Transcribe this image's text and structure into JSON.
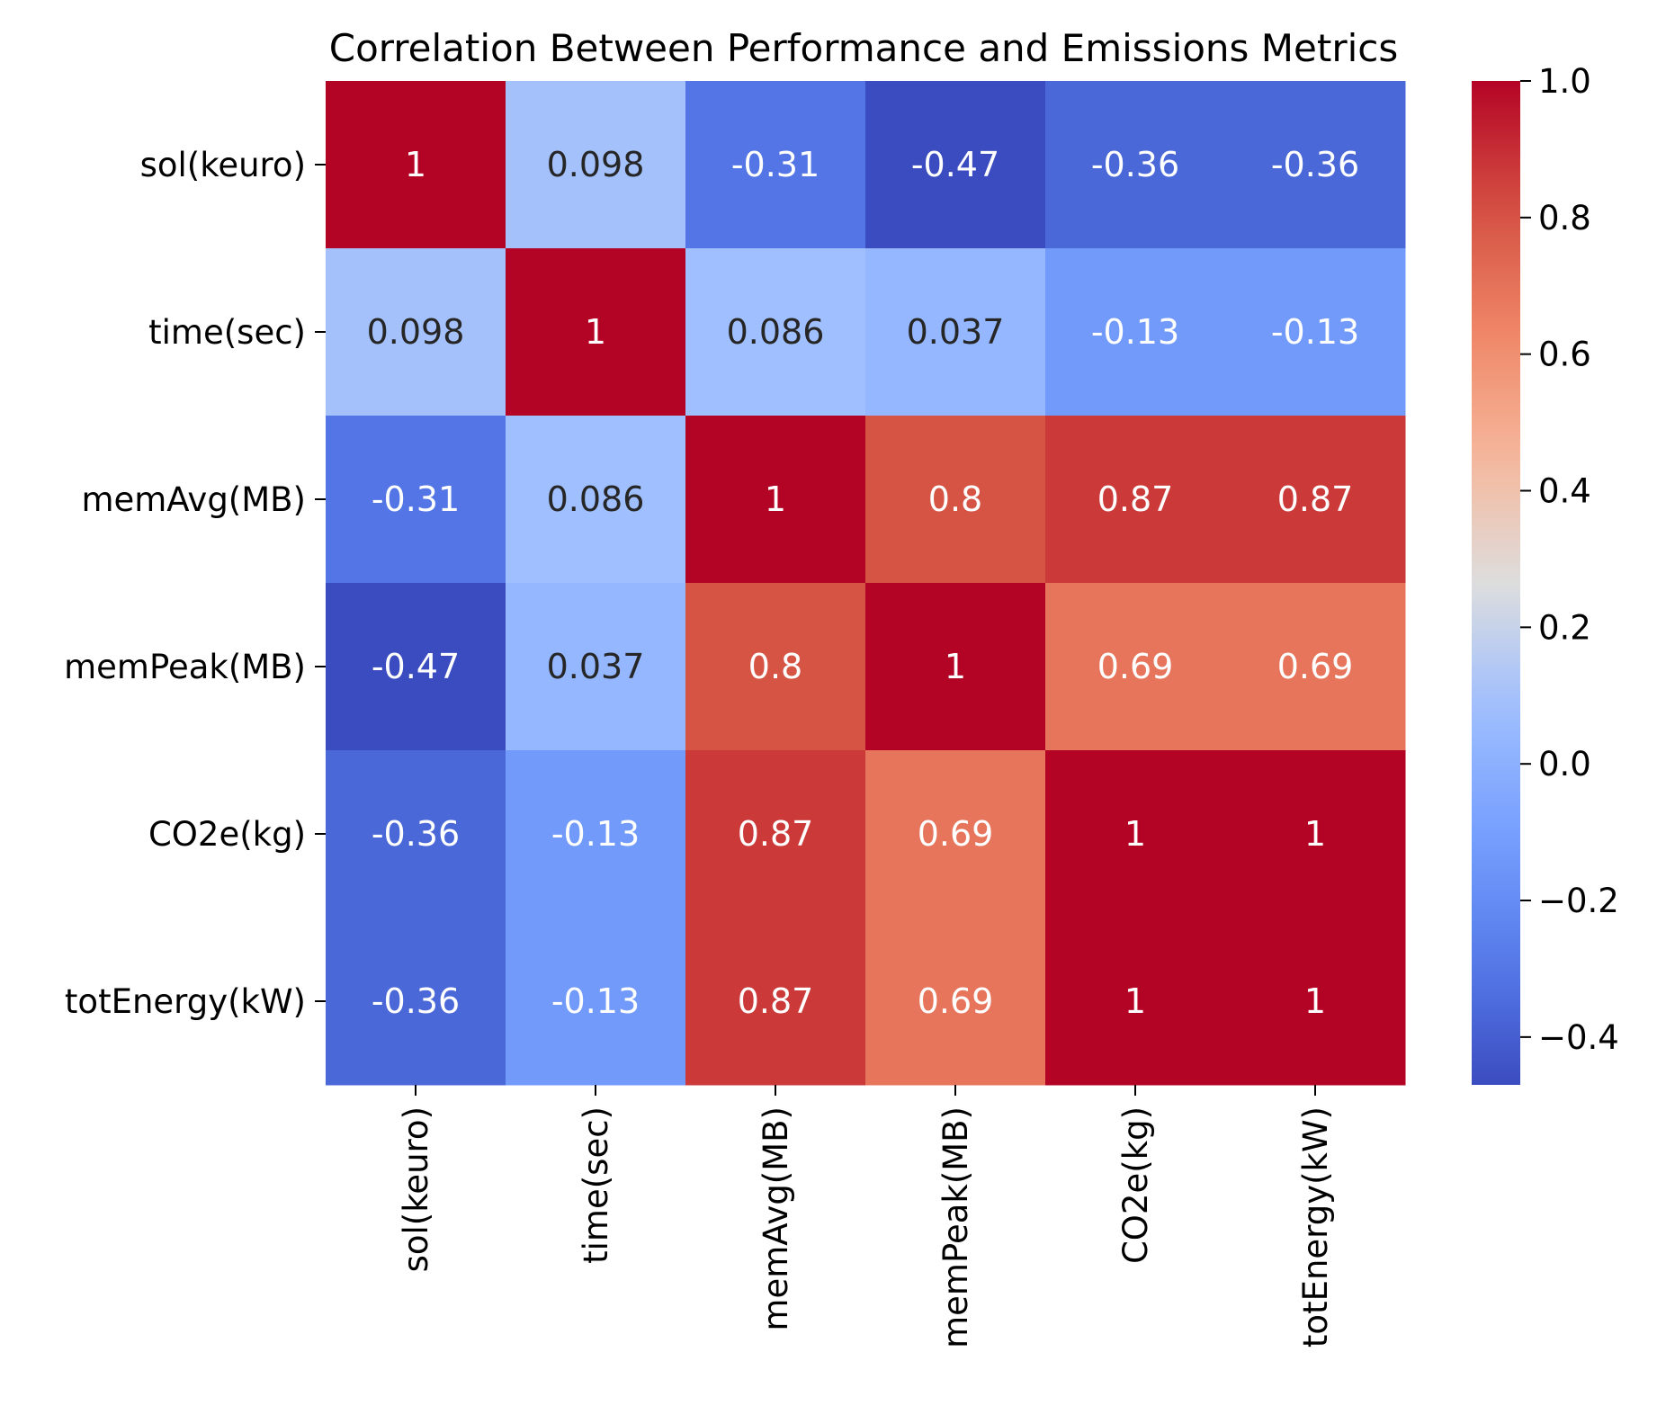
{
  "chart_data": {
    "type": "heatmap",
    "title": "Correlation Between Performance and Emissions Metrics",
    "xlabel": "",
    "ylabel": "",
    "rows": [
      "sol(keuro)",
      "time(sec)",
      "memAvg(MB)",
      "memPeak(MB)",
      "CO2e(kg)",
      "totEnergy(kW)"
    ],
    "cols": [
      "sol(keuro)",
      "time(sec)",
      "memAvg(MB)",
      "memPeak(MB)",
      "CO2e(kg)",
      "totEnergy(kW)"
    ],
    "values": [
      [
        1,
        0.098,
        -0.31,
        -0.47,
        -0.36,
        -0.36
      ],
      [
        0.098,
        1,
        0.086,
        0.037,
        -0.13,
        -0.13
      ],
      [
        -0.31,
        0.086,
        1,
        0.8,
        0.87,
        0.87
      ],
      [
        -0.47,
        0.037,
        0.8,
        1,
        0.69,
        0.69
      ],
      [
        -0.36,
        -0.13,
        0.87,
        0.69,
        1,
        1
      ],
      [
        -0.36,
        -0.13,
        0.87,
        0.69,
        1,
        1
      ]
    ],
    "annotations": [
      [
        "1",
        "0.098",
        "-0.31",
        "-0.47",
        "-0.36",
        "-0.36"
      ],
      [
        "0.098",
        "1",
        "0.086",
        "0.037",
        "-0.13",
        "-0.13"
      ],
      [
        "-0.31",
        "0.086",
        "1",
        "0.8",
        "0.87",
        "0.87"
      ],
      [
        "-0.47",
        "0.037",
        "0.8",
        "1",
        "0.69",
        "0.69"
      ],
      [
        "-0.36",
        "-0.13",
        "0.87",
        "0.69",
        "1",
        "1"
      ],
      [
        "-0.36",
        "-0.13",
        "0.87",
        "0.69",
        "1",
        "1"
      ]
    ],
    "colormap": "coolwarm",
    "colorbar": {
      "range": [
        -0.47,
        1.0
      ],
      "ticks": [
        1.0,
        0.8,
        0.6,
        0.4,
        0.2,
        0.0,
        -0.2,
        -0.4
      ],
      "tick_labels": [
        "1.0",
        "0.8",
        "0.6",
        "0.4",
        "0.2",
        "0.0",
        "−0.2",
        "−0.4"
      ],
      "position": "right"
    }
  }
}
